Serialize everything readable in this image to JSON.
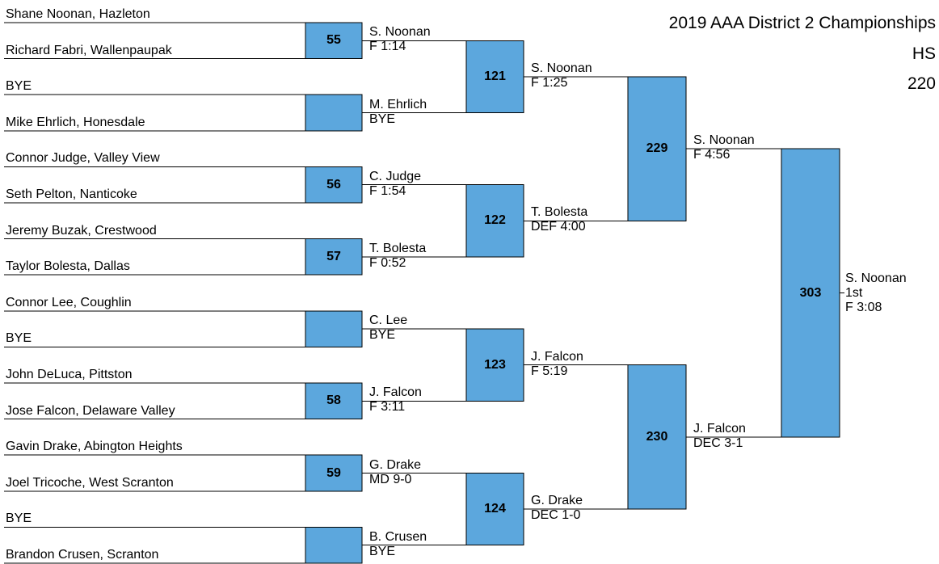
{
  "title": {
    "line1": "2019 AAA District 2 Championships",
    "line2": "HS",
    "line3": "220"
  },
  "colors": {
    "bout_fill": "#5ca7dd",
    "line": "#000000"
  },
  "entrants": [
    "Shane Noonan, Hazleton",
    "Richard Fabri, Wallenpaupak",
    "BYE",
    "Mike Ehrlich, Honesdale",
    "Connor Judge, Valley View",
    "Seth Pelton, Nanticoke",
    "Jeremy Buzak, Crestwood",
    "Taylor Bolesta, Dallas",
    "Connor Lee, Coughlin",
    "BYE",
    "John DeLuca, Pittston",
    "Jose Falcon, Delaware Valley",
    "Gavin Drake, Abington Heights",
    "Joel Tricoche, West Scranton",
    "BYE",
    "Brandon Crusen, Scranton"
  ],
  "rounds": [
    [
      {
        "bout": "55",
        "winner": "S. Noonan",
        "result": "F 1:14"
      },
      {
        "bout": "",
        "winner": "M. Ehrlich",
        "result": "BYE"
      },
      {
        "bout": "56",
        "winner": "C. Judge",
        "result": "F 1:54"
      },
      {
        "bout": "57",
        "winner": "T. Bolesta",
        "result": "F 0:52"
      },
      {
        "bout": "",
        "winner": "C. Lee",
        "result": "BYE"
      },
      {
        "bout": "58",
        "winner": "J. Falcon",
        "result": "F 3:11"
      },
      {
        "bout": "59",
        "winner": "G. Drake",
        "result": "MD 9-0"
      },
      {
        "bout": "",
        "winner": "B. Crusen",
        "result": "BYE"
      }
    ],
    [
      {
        "bout": "121",
        "winner": "S. Noonan",
        "result": "F 1:25"
      },
      {
        "bout": "122",
        "winner": "T. Bolesta",
        "result": "DEF 4:00"
      },
      {
        "bout": "123",
        "winner": "J. Falcon",
        "result": "F 5:19"
      },
      {
        "bout": "124",
        "winner": "G. Drake",
        "result": "DEC 1-0"
      }
    ],
    [
      {
        "bout": "229",
        "winner": "S. Noonan",
        "result": "F 4:56"
      },
      {
        "bout": "230",
        "winner": "J. Falcon",
        "result": "DEC 3-1"
      }
    ]
  ],
  "final": {
    "bout": "303",
    "winner": "S. Noonan",
    "place": "1st",
    "result": "F 3:08"
  }
}
